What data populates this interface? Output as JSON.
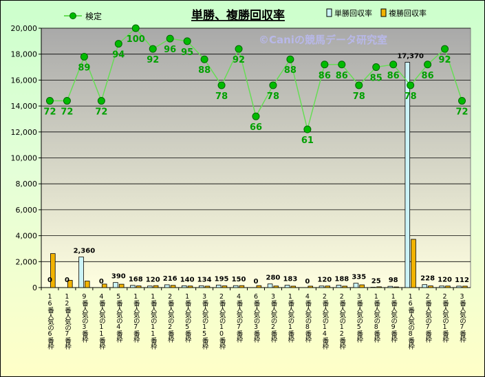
{
  "chart_data": {
    "type": "bar",
    "title": "単勝、複勝回収率",
    "watermark": "©Caniの競馬データ研究室",
    "categories": [
      "16番人気の6番枠",
      "12番人気の7番枠",
      "9番人気の3番枠",
      "4番人気の11番枠",
      "5番人気の4番枠",
      "1番人気の7番枠",
      "1番人気の11番枠",
      "2番人気の2番枠",
      "1番人気の5番枠",
      "3番人気の15番枠",
      "2番人気の10番枠",
      "4番人気の7番枠",
      "6番人気の3番枠",
      "3番人気の2番枠",
      "1番人気の1番枠",
      "4番人気の8番枠",
      "2番人気の14番枠",
      "2番人気の12番枠",
      "3番人気の5番枠",
      "1番人気の8番枠",
      "1番人気の9番枠",
      "16番人気の8番枠",
      "2番人気の7番枠",
      "2番人気の1番枠",
      "3番人気の7番枠"
    ],
    "series": [
      {
        "name": "単勝回収率",
        "kind": "bar",
        "color": "#ccf4f8",
        "values": [
          0,
          0,
          2360,
          0,
          390,
          168,
          120,
          216,
          140,
          134,
          195,
          150,
          0,
          280,
          183,
          0,
          120,
          188,
          335,
          25,
          98,
          17370,
          228,
          120,
          112
        ],
        "labels": [
          "0",
          "0",
          "2,360",
          "0",
          "390",
          "168",
          "120",
          "216",
          "140",
          "134",
          "195",
          "150",
          "0",
          "280",
          "183",
          "0",
          "120",
          "188",
          "335",
          "25",
          "98",
          "17,370",
          "228",
          "120",
          "112"
        ]
      },
      {
        "name": "複勝回収率",
        "kind": "bar",
        "color": "#f2b300",
        "values": [
          2620,
          560,
          500,
          270,
          260,
          130,
          150,
          170,
          120,
          110,
          130,
          150,
          150,
          120,
          110,
          110,
          120,
          110,
          210,
          60,
          50,
          3720,
          130,
          120,
          110
        ]
      },
      {
        "name": "検定",
        "kind": "line",
        "color": "#00b000",
        "values": [
          72,
          72,
          89,
          72,
          94,
          100,
          92,
          96,
          95,
          88,
          78,
          92,
          66,
          78,
          88,
          61,
          86,
          86,
          78,
          85,
          86,
          78,
          86,
          92,
          72
        ],
        "labels": [
          "72",
          "72",
          "89",
          "72",
          "94",
          "100",
          "92",
          "96",
          "95",
          "88",
          "78",
          "92",
          "66",
          "78",
          "88",
          "61",
          "86",
          "86",
          "78",
          "85",
          "86",
          "78",
          "86",
          "92",
          "72"
        ]
      }
    ],
    "ylim": [
      0,
      20000
    ],
    "yticks": [
      "0",
      "2,000",
      "4,000",
      "6,000",
      "8,000",
      "10,000",
      "12,000",
      "14,000",
      "16,000",
      "18,000",
      "20,000"
    ],
    "xlabel": "",
    "ylabel": "",
    "grid": true,
    "legend": "top"
  }
}
